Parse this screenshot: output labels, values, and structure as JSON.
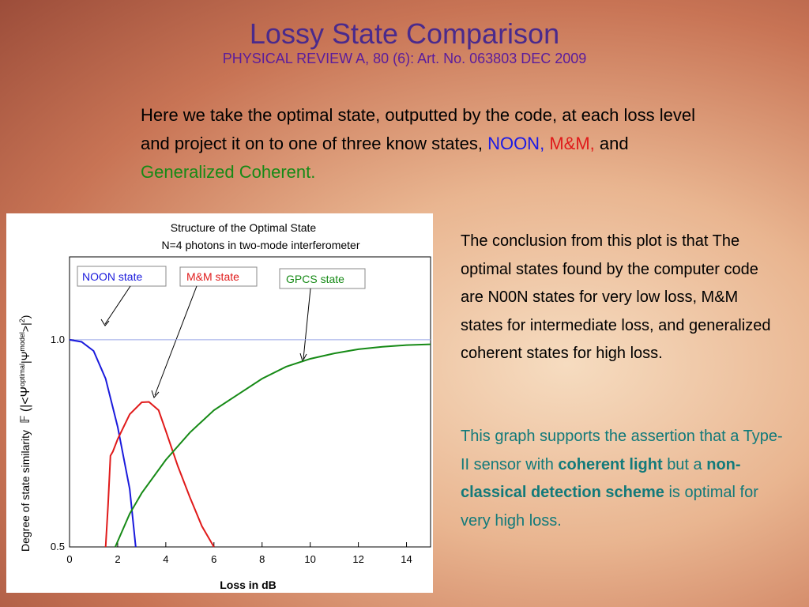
{
  "slide": {
    "title": "Lossy State Comparison",
    "subtitle": "PHYSICAL REVIEW A, 80 (6): Art. No. 063803 DEC 2009",
    "intro": [
      "Here we take the optimal state, outputted by the code, at each loss level and project it on to one of three know states,",
      "NOON,",
      "M&M,",
      "and",
      "Generalized Coherent."
    ],
    "conclusion": "The conclusion from this plot is that The optimal states found by the computer code are N00N states for very low loss, M&M states for intermediate loss, and generalized coherent states for high loss.",
    "support": [
      "This graph supports the assertion that a Type-II sensor with",
      "coherent light",
      "but a",
      "non-classical detection scheme",
      "is optimal for very high loss."
    ]
  },
  "chart_data": {
    "type": "line",
    "title": [
      "Structure of the Optimal State",
      "N=4 photons in two-mode interferometer"
    ],
    "x_label": "Loss in dB",
    "y_label": "Degree of state similarity",
    "y_label_formula": [
      "𝔽",
      "(|<Ψ",
      "optimal",
      "|Ψ",
      "model",
      ">|",
      "2",
      ")"
    ],
    "xlim": [
      0,
      15
    ],
    "ylim": [
      0.5,
      1.2
    ],
    "xticks": [
      0,
      2,
      4,
      6,
      8,
      10,
      12,
      14
    ],
    "yticks": [
      0.5,
      {
        "value": 1,
        "label": "1.0"
      }
    ],
    "reference_line": 1,
    "series": [
      {
        "name": "NOON state",
        "color": "#1a1adc",
        "x": [
          0,
          0.5,
          1,
          1.5,
          2,
          2.5,
          2.75
        ],
        "values": [
          1.0,
          0.995,
          0.973,
          0.906,
          0.79,
          0.64,
          0.5
        ]
      },
      {
        "name": "M&M state",
        "color": "#e01a1a",
        "x": [
          1.5,
          1.6,
          1.7,
          1.8,
          2,
          2.5,
          3,
          3.3,
          3.7,
          4,
          4.5,
          5,
          5.5,
          6
        ],
        "values": [
          0.5,
          0.6,
          0.72,
          0.73,
          0.76,
          0.82,
          0.849,
          0.85,
          0.83,
          0.78,
          0.695,
          0.62,
          0.55,
          0.5
        ]
      },
      {
        "name": "GPCS state",
        "color": "#168a16",
        "x": [
          1.9,
          2.5,
          3,
          4,
          5,
          6,
          7,
          8,
          9,
          10,
          11,
          12,
          13,
          14,
          15
        ],
        "values": [
          0.5,
          0.58,
          0.63,
          0.71,
          0.776,
          0.83,
          0.868,
          0.906,
          0.935,
          0.954,
          0.967,
          0.977,
          0.983,
          0.987,
          0.989
        ]
      }
    ]
  }
}
